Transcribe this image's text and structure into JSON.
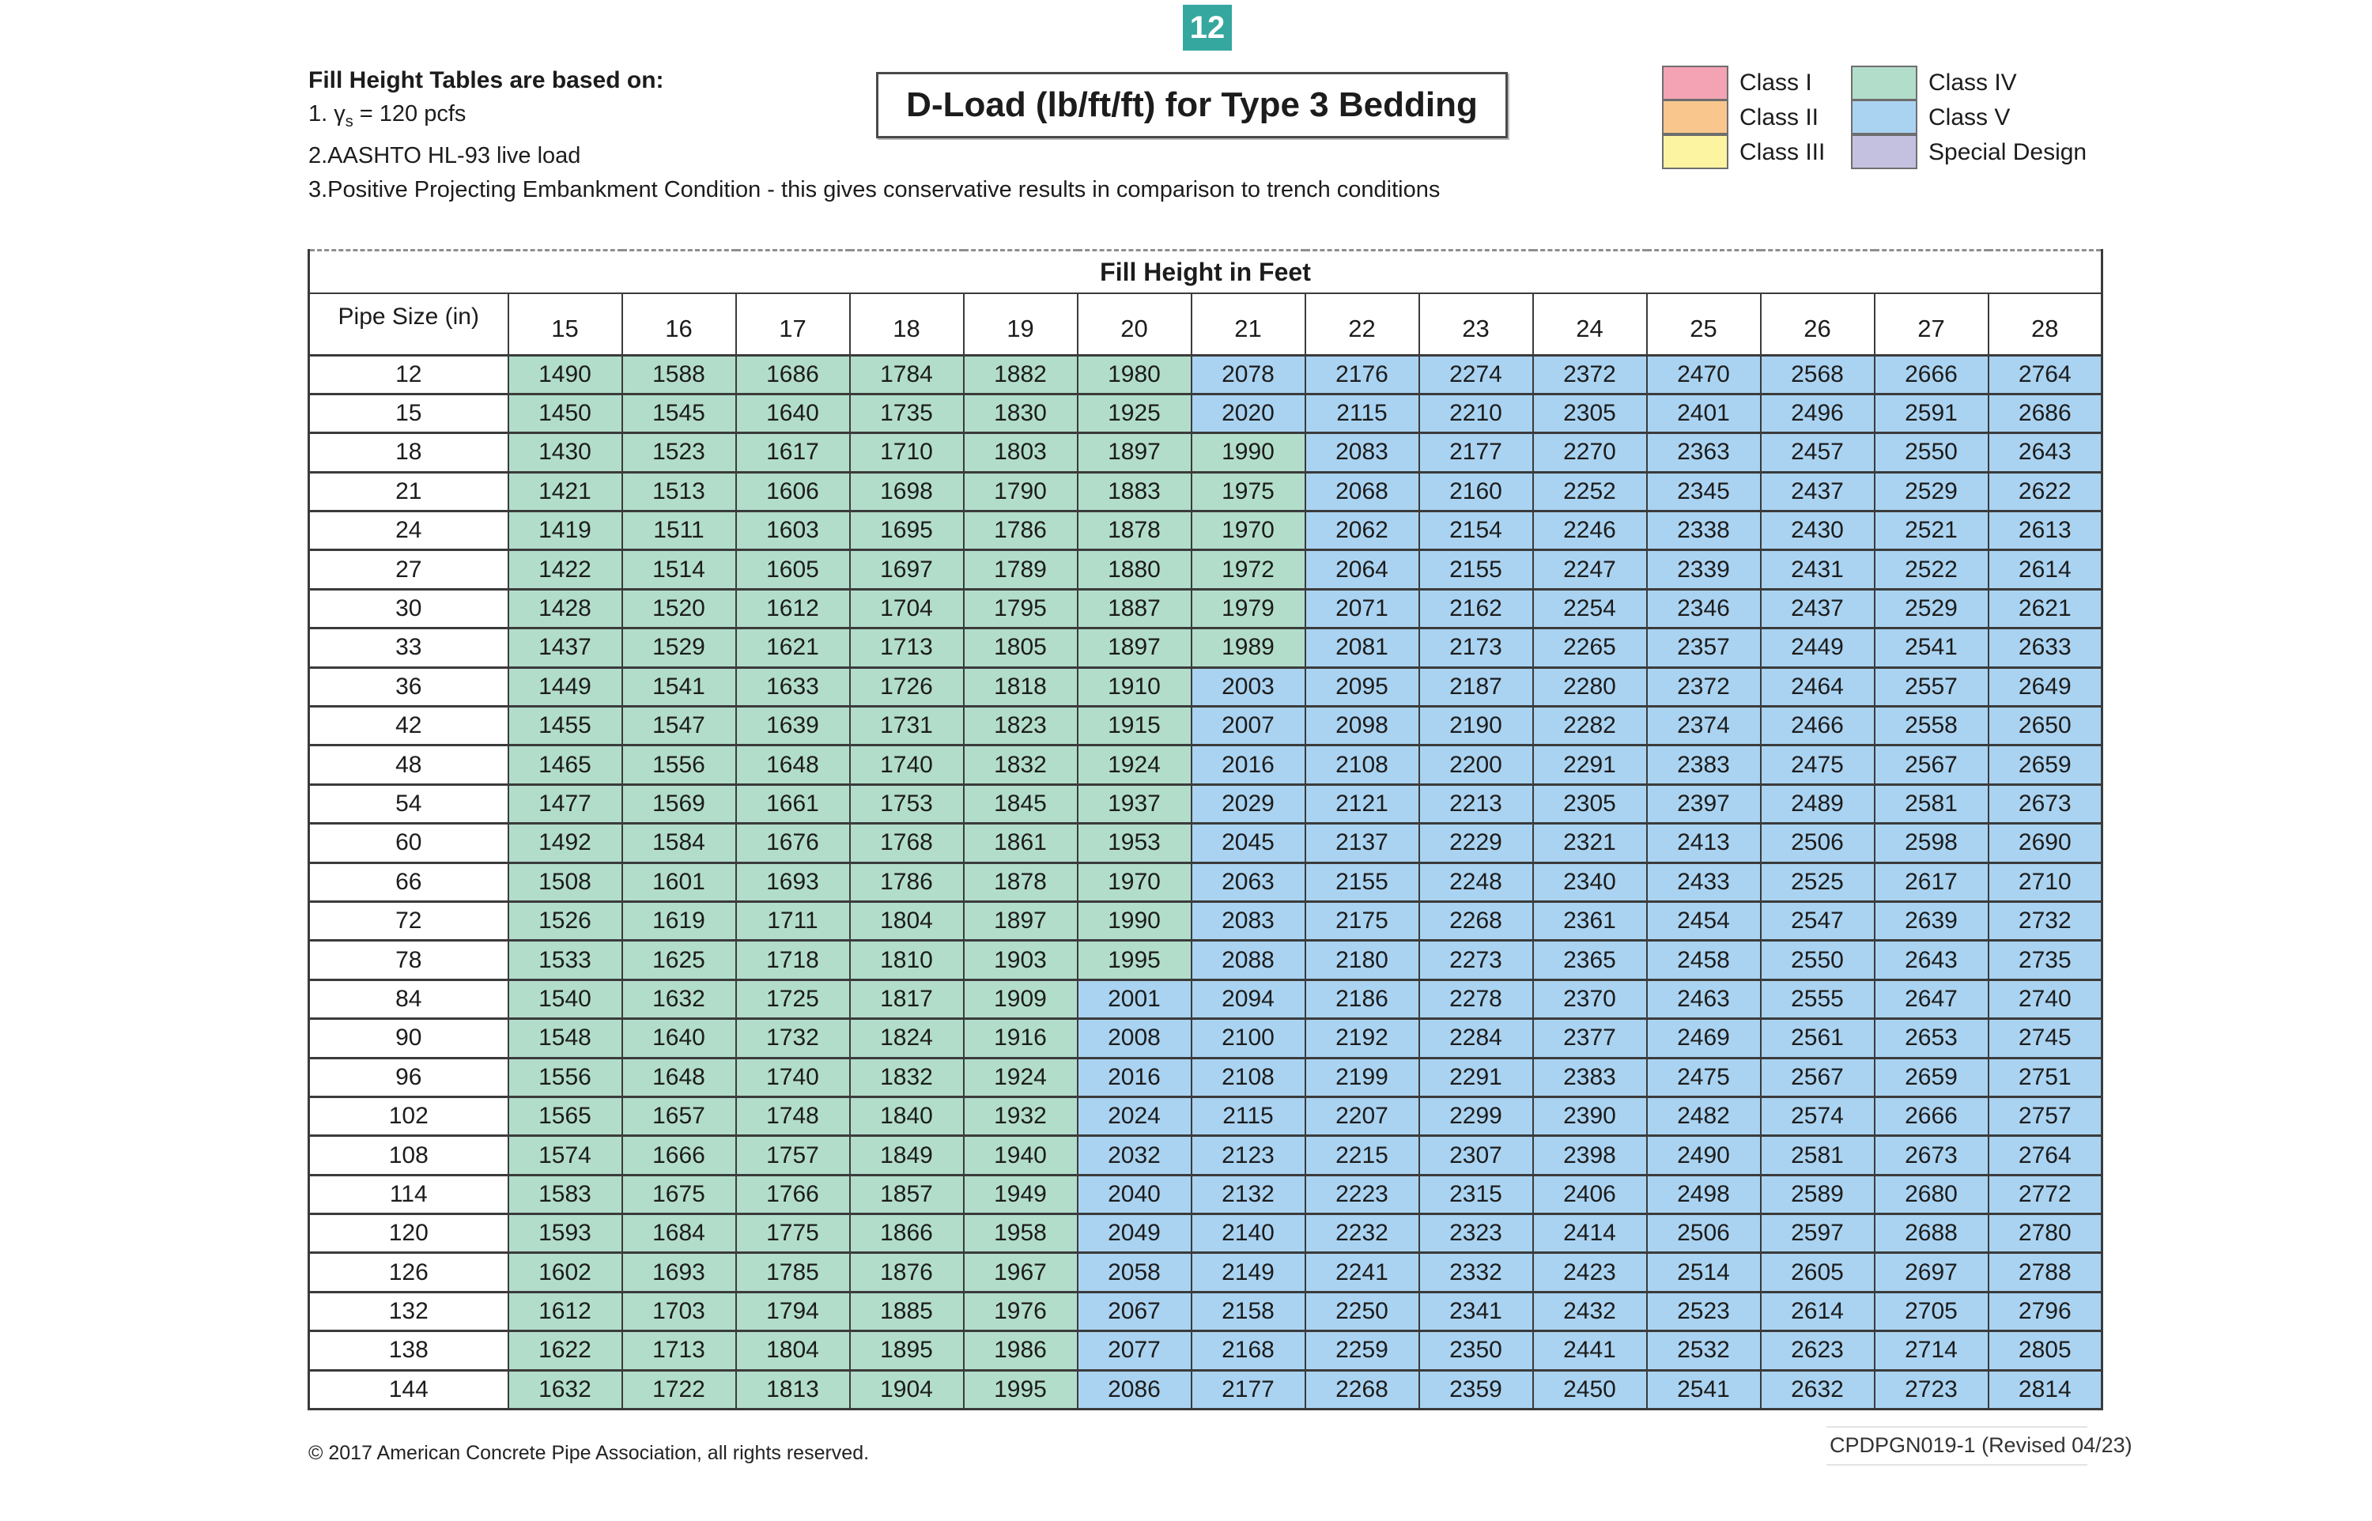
{
  "badge": {
    "label": "12",
    "color": "#35a79f"
  },
  "title": "D-Load (lb/ft/ft) for Type 3 Bedding",
  "notes": {
    "heading": "Fill Height Tables are based on:",
    "note1": {
      "pre": "1. ",
      "gamma": "γ",
      "sub": "s",
      "post": " = 120 pcfs"
    },
    "note2": "2.AASHTO HL-93 live load",
    "note3": "3.Positive Projecting Embankment Condition - this gives conservative results in comparison to trench conditions"
  },
  "legend": {
    "col1": [
      {
        "label": "Class I",
        "color": "#f3a3b4"
      },
      {
        "label": "Class II",
        "color": "#f9c78d"
      },
      {
        "label": "Class III",
        "color": "#fdf4a2"
      }
    ],
    "col2": [
      {
        "label": "Class IV",
        "color": "#b2ddca"
      },
      {
        "label": "Class V",
        "color": "#aad3f1"
      },
      {
        "label": "Special Design",
        "color": "#c4c1e0"
      }
    ]
  },
  "table": {
    "header": "Fill Height in Feet",
    "row_header": "Pipe Size (in)",
    "columns": [
      "15",
      "16",
      "17",
      "18",
      "19",
      "20",
      "21",
      "22",
      "23",
      "24",
      "25",
      "26",
      "27",
      "28"
    ],
    "class_threshold": 2000,
    "class_colors": {
      "class_iv": "#b2ddca",
      "class_v": "#aad3f1"
    },
    "rows": [
      {
        "pipe": "12",
        "values": [
          1490,
          1588,
          1686,
          1784,
          1882,
          1980,
          2078,
          2176,
          2274,
          2372,
          2470,
          2568,
          2666,
          2764
        ]
      },
      {
        "pipe": "15",
        "values": [
          1450,
          1545,
          1640,
          1735,
          1830,
          1925,
          2020,
          2115,
          2210,
          2305,
          2401,
          2496,
          2591,
          2686
        ]
      },
      {
        "pipe": "18",
        "values": [
          1430,
          1523,
          1617,
          1710,
          1803,
          1897,
          1990,
          2083,
          2177,
          2270,
          2363,
          2457,
          2550,
          2643
        ]
      },
      {
        "pipe": "21",
        "values": [
          1421,
          1513,
          1606,
          1698,
          1790,
          1883,
          1975,
          2068,
          2160,
          2252,
          2345,
          2437,
          2529,
          2622
        ]
      },
      {
        "pipe": "24",
        "values": [
          1419,
          1511,
          1603,
          1695,
          1786,
          1878,
          1970,
          2062,
          2154,
          2246,
          2338,
          2430,
          2521,
          2613
        ]
      },
      {
        "pipe": "27",
        "values": [
          1422,
          1514,
          1605,
          1697,
          1789,
          1880,
          1972,
          2064,
          2155,
          2247,
          2339,
          2431,
          2522,
          2614
        ]
      },
      {
        "pipe": "30",
        "values": [
          1428,
          1520,
          1612,
          1704,
          1795,
          1887,
          1979,
          2071,
          2162,
          2254,
          2346,
          2437,
          2529,
          2621
        ]
      },
      {
        "pipe": "33",
        "values": [
          1437,
          1529,
          1621,
          1713,
          1805,
          1897,
          1989,
          2081,
          2173,
          2265,
          2357,
          2449,
          2541,
          2633
        ]
      },
      {
        "pipe": "36",
        "values": [
          1449,
          1541,
          1633,
          1726,
          1818,
          1910,
          2003,
          2095,
          2187,
          2280,
          2372,
          2464,
          2557,
          2649
        ]
      },
      {
        "pipe": "42",
        "values": [
          1455,
          1547,
          1639,
          1731,
          1823,
          1915,
          2007,
          2098,
          2190,
          2282,
          2374,
          2466,
          2558,
          2650
        ]
      },
      {
        "pipe": "48",
        "values": [
          1465,
          1556,
          1648,
          1740,
          1832,
          1924,
          2016,
          2108,
          2200,
          2291,
          2383,
          2475,
          2567,
          2659
        ]
      },
      {
        "pipe": "54",
        "values": [
          1477,
          1569,
          1661,
          1753,
          1845,
          1937,
          2029,
          2121,
          2213,
          2305,
          2397,
          2489,
          2581,
          2673
        ]
      },
      {
        "pipe": "60",
        "values": [
          1492,
          1584,
          1676,
          1768,
          1861,
          1953,
          2045,
          2137,
          2229,
          2321,
          2413,
          2506,
          2598,
          2690
        ]
      },
      {
        "pipe": "66",
        "values": [
          1508,
          1601,
          1693,
          1786,
          1878,
          1970,
          2063,
          2155,
          2248,
          2340,
          2433,
          2525,
          2617,
          2710
        ]
      },
      {
        "pipe": "72",
        "values": [
          1526,
          1619,
          1711,
          1804,
          1897,
          1990,
          2083,
          2175,
          2268,
          2361,
          2454,
          2547,
          2639,
          2732
        ]
      },
      {
        "pipe": "78",
        "values": [
          1533,
          1625,
          1718,
          1810,
          1903,
          1995,
          2088,
          2180,
          2273,
          2365,
          2458,
          2550,
          2643,
          2735
        ]
      },
      {
        "pipe": "84",
        "values": [
          1540,
          1632,
          1725,
          1817,
          1909,
          2001,
          2094,
          2186,
          2278,
          2370,
          2463,
          2555,
          2647,
          2740
        ]
      },
      {
        "pipe": "90",
        "values": [
          1548,
          1640,
          1732,
          1824,
          1916,
          2008,
          2100,
          2192,
          2284,
          2377,
          2469,
          2561,
          2653,
          2745
        ]
      },
      {
        "pipe": "96",
        "values": [
          1556,
          1648,
          1740,
          1832,
          1924,
          2016,
          2108,
          2199,
          2291,
          2383,
          2475,
          2567,
          2659,
          2751
        ]
      },
      {
        "pipe": "102",
        "values": [
          1565,
          1657,
          1748,
          1840,
          1932,
          2024,
          2115,
          2207,
          2299,
          2390,
          2482,
          2574,
          2666,
          2757
        ]
      },
      {
        "pipe": "108",
        "values": [
          1574,
          1666,
          1757,
          1849,
          1940,
          2032,
          2123,
          2215,
          2307,
          2398,
          2490,
          2581,
          2673,
          2764
        ]
      },
      {
        "pipe": "114",
        "values": [
          1583,
          1675,
          1766,
          1857,
          1949,
          2040,
          2132,
          2223,
          2315,
          2406,
          2498,
          2589,
          2680,
          2772
        ]
      },
      {
        "pipe": "120",
        "values": [
          1593,
          1684,
          1775,
          1866,
          1958,
          2049,
          2140,
          2232,
          2323,
          2414,
          2506,
          2597,
          2688,
          2780
        ]
      },
      {
        "pipe": "126",
        "values": [
          1602,
          1693,
          1785,
          1876,
          1967,
          2058,
          2149,
          2241,
          2332,
          2423,
          2514,
          2605,
          2697,
          2788
        ]
      },
      {
        "pipe": "132",
        "values": [
          1612,
          1703,
          1794,
          1885,
          1976,
          2067,
          2158,
          2250,
          2341,
          2432,
          2523,
          2614,
          2705,
          2796
        ]
      },
      {
        "pipe": "138",
        "values": [
          1622,
          1713,
          1804,
          1895,
          1986,
          2077,
          2168,
          2259,
          2350,
          2441,
          2532,
          2623,
          2714,
          2805
        ]
      },
      {
        "pipe": "144",
        "values": [
          1632,
          1722,
          1813,
          1904,
          1995,
          2086,
          2177,
          2268,
          2359,
          2450,
          2541,
          2632,
          2723,
          2814
        ]
      }
    ]
  },
  "footer": {
    "left": "© 2017 American Concrete Pipe Association, all rights reserved.",
    "right": "CPDPGN019-1 (Revised 04/23)"
  }
}
